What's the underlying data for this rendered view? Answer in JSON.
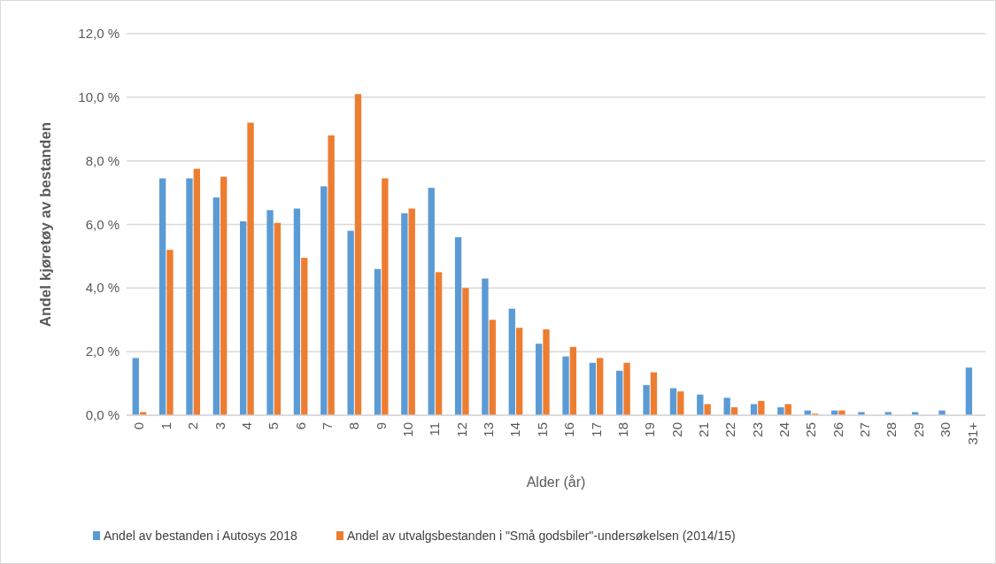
{
  "chart_data": {
    "type": "bar",
    "xlabel": "Alder (år)",
    "ylabel": "Andel kjøretøy av bestanden",
    "categories": [
      "0",
      "1",
      "2",
      "3",
      "4",
      "5",
      "6",
      "7",
      "8",
      "9",
      "10",
      "11",
      "12",
      "13",
      "14",
      "15",
      "16",
      "17",
      "18",
      "19",
      "20",
      "21",
      "22",
      "23",
      "24",
      "25",
      "26",
      "27",
      "28",
      "29",
      "30",
      "31+"
    ],
    "series": [
      {
        "name": "Andel av bestanden i Autosys 2018",
        "color": "#5b9bd5",
        "values": [
          1.8,
          7.45,
          7.45,
          6.85,
          6.1,
          6.45,
          6.5,
          7.2,
          5.8,
          4.6,
          6.35,
          7.15,
          5.6,
          4.3,
          3.35,
          2.25,
          1.85,
          1.65,
          1.4,
          0.95,
          0.85,
          0.65,
          0.55,
          0.35,
          0.25,
          0.15,
          0.15,
          0.1,
          0.1,
          0.1,
          0.15,
          1.5
        ]
      },
      {
        "name": "Andel av utvalgsbestanden i \"Små godsbiler\"-undersøkelsen (2014/15)",
        "color": "#ed7d31",
        "values": [
          0.1,
          5.2,
          7.75,
          7.5,
          9.2,
          6.05,
          4.95,
          8.8,
          10.1,
          7.45,
          6.5,
          4.5,
          4.0,
          3.0,
          2.75,
          2.7,
          2.15,
          1.8,
          1.65,
          1.35,
          0.75,
          0.35,
          0.25,
          0.45,
          0.35,
          0.05,
          0.15,
          0,
          0,
          0,
          0,
          0
        ]
      }
    ],
    "ylim": [
      0,
      12
    ],
    "yticks": [
      {
        "value": 0,
        "label": "0,0 %"
      },
      {
        "value": 2,
        "label": "2,0 %"
      },
      {
        "value": 4,
        "label": "4,0 %"
      },
      {
        "value": 6,
        "label": "6,0 %"
      },
      {
        "value": 8,
        "label": "8,0 %"
      },
      {
        "value": 10,
        "label": "10,0 %"
      },
      {
        "value": 12,
        "label": "12,0 %"
      }
    ],
    "grid": "y",
    "legend": "bottom"
  }
}
